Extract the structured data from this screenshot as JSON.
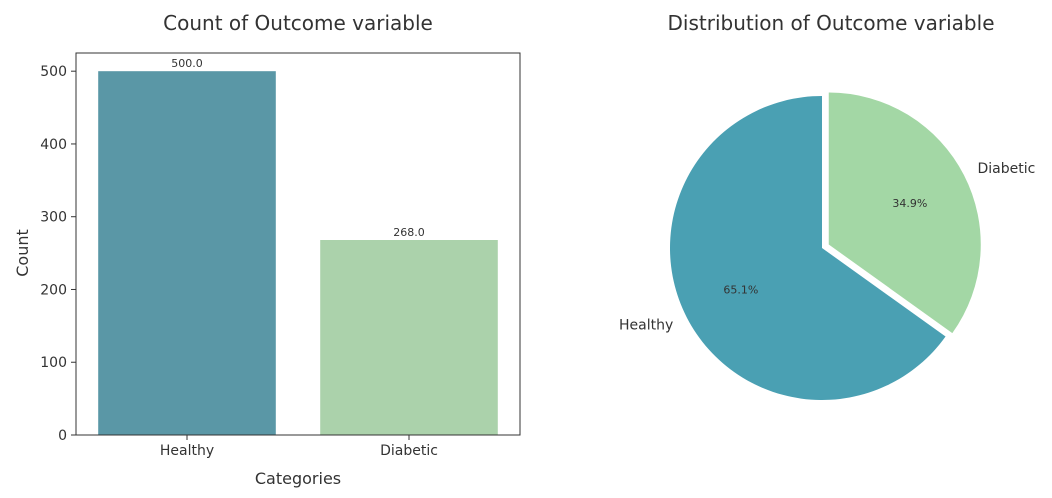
{
  "chart_data": [
    {
      "type": "bar",
      "title": "Count of Outcome variable",
      "xlabel": "Categories",
      "ylabel": "Count",
      "categories": [
        "Healthy",
        "Diabetic"
      ],
      "values": [
        500,
        268
      ],
      "data_labels": [
        "500.0",
        "268.0"
      ],
      "ylim": [
        0,
        525
      ],
      "yticks": [
        0,
        100,
        200,
        300,
        400,
        500
      ],
      "colors": [
        "#5a97a6",
        "#abd2ab"
      ],
      "grid": false
    },
    {
      "type": "pie",
      "title": "Distribution of Outcome variable",
      "labels": [
        "Healthy",
        "Diabetic"
      ],
      "values": [
        500,
        268
      ],
      "percent_labels": [
        "65.1%",
        "34.9%"
      ],
      "explode": [
        0,
        0.05
      ],
      "start_angle": 90,
      "counterclockwise": true,
      "colors": [
        "#4aa0b3",
        "#a3d7a5"
      ]
    }
  ]
}
